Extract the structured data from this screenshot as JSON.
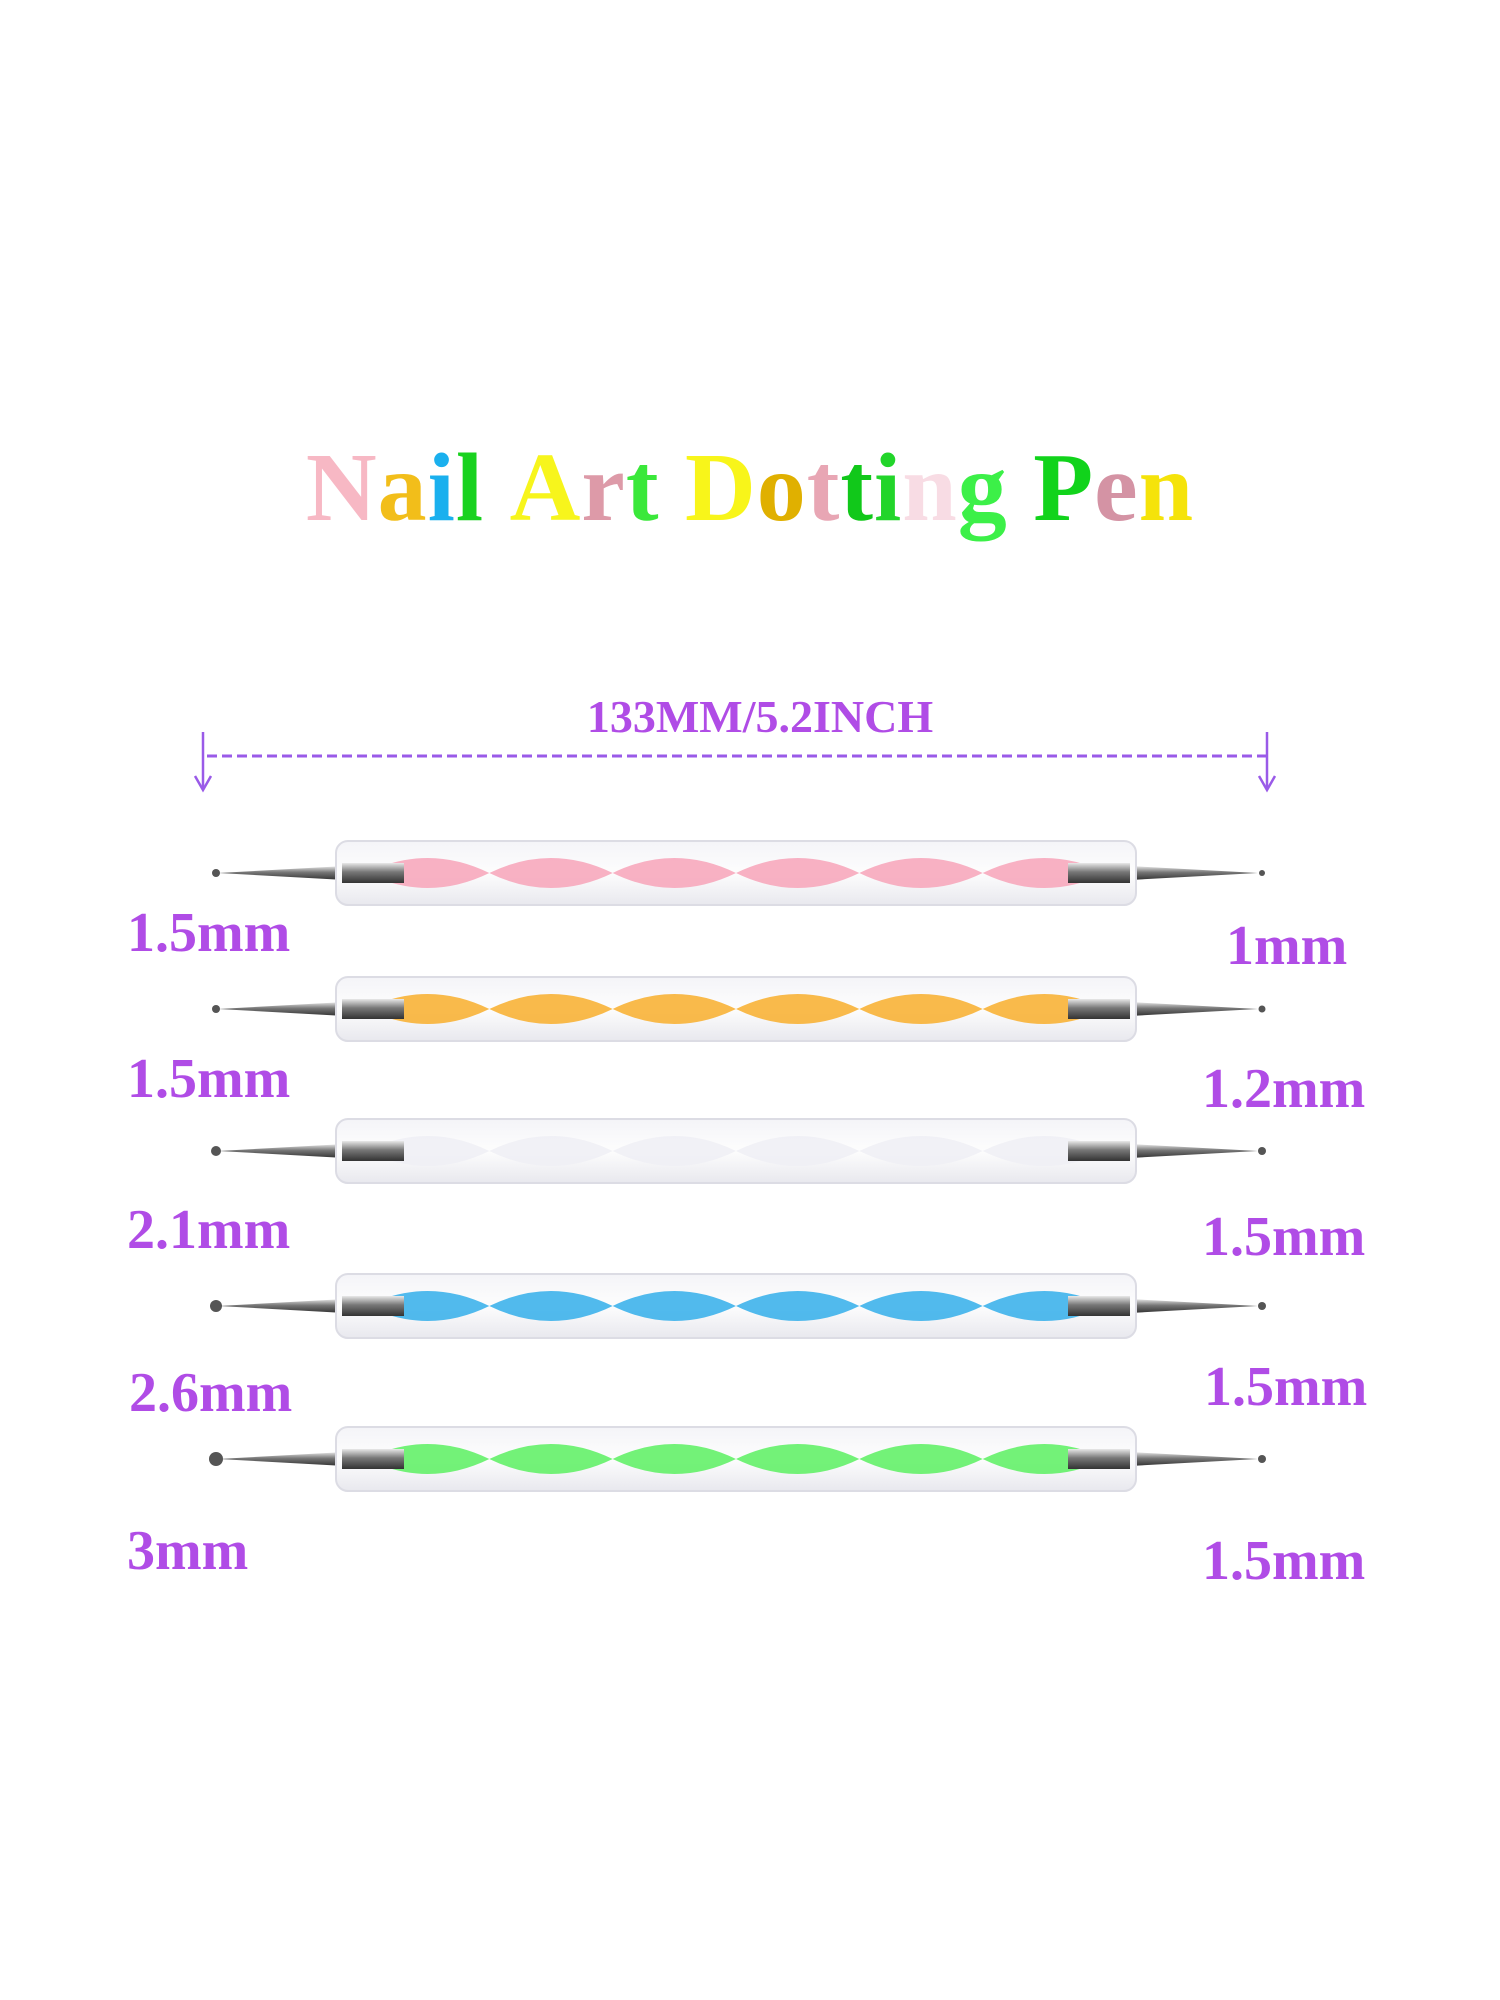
{
  "title": {
    "letters": [
      {
        "ch": "N",
        "color": "#f7b8c4"
      },
      {
        "ch": "a",
        "color": "#f2be1a"
      },
      {
        "ch": "i",
        "color": "#1ab0ee"
      },
      {
        "ch": "l",
        "color": "#19d21f"
      },
      {
        "ch": " ",
        "color": "#ffffff"
      },
      {
        "ch": "A",
        "color": "#f7f51c"
      },
      {
        "ch": "r",
        "color": "#dd9aa8"
      },
      {
        "ch": "t",
        "color": "#3ae83a"
      },
      {
        "ch": " ",
        "color": "#ffffff"
      },
      {
        "ch": "D",
        "color": "#f8f51a"
      },
      {
        "ch": "o",
        "color": "#e0b000"
      },
      {
        "ch": "t",
        "color": "#e8a6b4"
      },
      {
        "ch": "t",
        "color": "#11c81a"
      },
      {
        "ch": "i",
        "color": "#22d52a"
      },
      {
        "ch": "n",
        "color": "#f8dce4"
      },
      {
        "ch": "g",
        "color": "#3cf048"
      },
      {
        "ch": " ",
        "color": "#ffffff"
      },
      {
        "ch": "P",
        "color": "#11d31b"
      },
      {
        "ch": "e",
        "color": "#d493a4"
      },
      {
        "ch": "n",
        "color": "#f5e30a"
      }
    ]
  },
  "measurement": {
    "label": "133MM/5.2INCH",
    "color": "#9a5ae8"
  },
  "label_color": "#b04ce6",
  "pens": [
    {
      "color": "pink",
      "swirl": "#f7a3b8",
      "left_tip": "1.5mm",
      "right_tip": "1mm"
    },
    {
      "color": "orange",
      "swirl": "#f8ae2c",
      "left_tip": "1.5mm",
      "right_tip": "1.2mm"
    },
    {
      "color": "white",
      "swirl": "#eeeef4",
      "left_tip": "2.1mm",
      "right_tip": "1.5mm"
    },
    {
      "color": "blue",
      "swirl": "#33aeea",
      "left_tip": "2.6mm",
      "right_tip": "1.5mm"
    },
    {
      "color": "green",
      "swirl": "#5af060",
      "left_tip": "3mm",
      "right_tip": "1.5mm"
    }
  ]
}
